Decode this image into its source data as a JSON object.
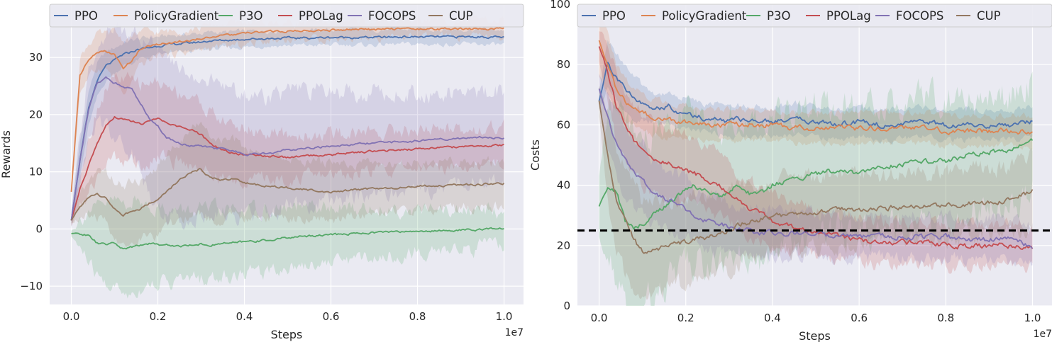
{
  "chart_data": [
    {
      "type": "line",
      "xlabel": "Steps",
      "ylabel": "Rewards",
      "x_offset_label": "1e7",
      "x_ticks": [
        "0.0",
        "0.2",
        "0.4",
        "0.6",
        "0.8",
        "1.0"
      ],
      "y_ticks": [
        "−10",
        "0",
        "10",
        "20",
        "30"
      ],
      "xlim": [
        -0.05,
        1.045
      ],
      "ylim": [
        -13.2,
        39.3
      ],
      "grid": true,
      "legend_position": "top",
      "x": [
        0,
        0.02,
        0.04,
        0.06,
        0.08,
        0.1,
        0.12,
        0.14,
        0.16,
        0.18,
        0.2,
        0.22,
        0.25,
        0.28,
        0.3,
        0.32,
        0.35,
        0.38,
        0.4,
        0.45,
        0.5,
        0.55,
        0.6,
        0.65,
        0.7,
        0.75,
        0.8,
        0.85,
        0.9,
        0.95,
        1.0
      ],
      "series": [
        {
          "name": "PPO",
          "color": "#4c72b0",
          "values": [
            1.5,
            12,
            21,
            26,
            28.5,
            29.5,
            30.5,
            31,
            31.5,
            31.7,
            32,
            32.2,
            32.4,
            32.6,
            32.7,
            32.9,
            33,
            33.1,
            33.2,
            33.3,
            33.4,
            33.4,
            33.5,
            33.5,
            33.5,
            33.6,
            33.6,
            33.6,
            33.6,
            33.6,
            33.5
          ],
          "band": [
            1.5,
            3,
            3,
            3,
            2.5,
            2.2,
            2,
            2,
            1.8,
            1.8,
            1.6,
            1.6,
            1.5,
            1.5,
            1.5,
            1.5,
            1.4,
            1.4,
            1.4,
            1.3,
            1.3,
            1.3,
            1.3,
            1.3,
            1.3,
            1.3,
            1.3,
            1.3,
            1.3,
            1.3,
            1.3
          ]
        },
        {
          "name": "PolicyGradient",
          "color": "#dd8452",
          "values": [
            6.5,
            27,
            29.5,
            31,
            31,
            30.5,
            28,
            29.5,
            31.5,
            32,
            32.3,
            32.5,
            32.8,
            33,
            33.3,
            33.6,
            33.8,
            34,
            34.2,
            34.5,
            34.6,
            34.7,
            34.8,
            34.9,
            34.9,
            35,
            35,
            35,
            35,
            35,
            35
          ],
          "band": [
            1,
            3,
            3,
            3,
            3,
            4,
            5,
            4,
            3,
            2.5,
            2,
            2,
            2,
            2,
            2,
            2,
            2,
            2,
            2,
            1.5,
            1.5,
            1.5,
            1.5,
            1.5,
            1.5,
            1.5,
            1.5,
            1.5,
            1.5,
            1.5,
            1.5
          ]
        },
        {
          "name": "P3O",
          "color": "#55a868",
          "values": [
            -0.8,
            -0.8,
            -1.2,
            -2.5,
            -2.7,
            -2.5,
            -3.5,
            -3.2,
            -2.8,
            -2.5,
            -2.7,
            -2.8,
            -3,
            -2.8,
            -2.6,
            -2.9,
            -2.5,
            -2.4,
            -2.2,
            -2,
            -1.5,
            -1.2,
            -1,
            -0.8,
            -0.6,
            -0.5,
            -0.4,
            -0.3,
            -0.2,
            -0.1,
            0.1
          ],
          "band": [
            0.5,
            2.5,
            4.5,
            6,
            7,
            7.5,
            8,
            8,
            7.5,
            7,
            6.5,
            6.5,
            6,
            6,
            6,
            6,
            5.8,
            5.6,
            5.5,
            5.3,
            5,
            4.8,
            4.6,
            4.4,
            4.2,
            4,
            3.8,
            3.6,
            3.4,
            3.2,
            3.2
          ]
        },
        {
          "name": "PPOLag",
          "color": "#c44e52",
          "values": [
            1.5,
            7,
            11,
            15,
            18,
            19.5,
            19.2,
            18.8,
            18.3,
            18.8,
            19.3,
            18.5,
            17.8,
            17.2,
            16.5,
            15,
            13.8,
            13.2,
            13,
            12.8,
            12.5,
            12.8,
            13,
            13.3,
            13.6,
            13.8,
            14,
            14.2,
            14.4,
            14.5,
            14.7
          ],
          "band": [
            1,
            3,
            5,
            6,
            6.5,
            7,
            7,
            7,
            7,
            7,
            6.5,
            6.5,
            6,
            6,
            5.5,
            5.5,
            5,
            5,
            4.5,
            4,
            3.8,
            3.6,
            3.5,
            3.5,
            3.4,
            3.4,
            3.3,
            3.3,
            3.3,
            3.2,
            3.2
          ]
        },
        {
          "name": "FOCOPS",
          "color": "#8172b3",
          "values": [
            1.5,
            12,
            21,
            25.5,
            26.5,
            25.5,
            25,
            24.5,
            22,
            19.5,
            18,
            16,
            15,
            14.5,
            14.5,
            14.2,
            14,
            13.5,
            13,
            13.2,
            13.8,
            14.2,
            14.5,
            14.8,
            15,
            15.2,
            15.4,
            15.6,
            15.8,
            16,
            16
          ],
          "band": [
            1,
            4,
            6,
            7,
            8,
            9,
            10,
            11,
            12,
            13,
            13.5,
            13.5,
            13,
            12.5,
            12,
            11.5,
            11,
            10.8,
            10.5,
            10.2,
            10,
            9.8,
            9.5,
            9.2,
            9,
            8.8,
            8.5,
            8.2,
            8,
            8,
            8
          ]
        },
        {
          "name": "CUP",
          "color": "#937860",
          "values": [
            1.5,
            4,
            5.5,
            6,
            5.5,
            3.5,
            2.5,
            3,
            3.5,
            4.5,
            5,
            6.5,
            8.5,
            10,
            10.5,
            9,
            8.5,
            8.8,
            8,
            7.5,
            7.2,
            6.8,
            6.5,
            6.8,
            7,
            7.2,
            7.5,
            7.6,
            7.7,
            7.8,
            8
          ],
          "band": [
            0.5,
            2,
            3,
            4,
            4.5,
            5,
            5,
            5,
            5,
            5.5,
            6,
            6.5,
            7,
            7.5,
            7.5,
            7.5,
            7,
            6.5,
            6,
            5.5,
            5.2,
            5,
            4.8,
            4.6,
            4.4,
            4.2,
            4.1,
            4,
            4,
            4,
            4
          ]
        }
      ]
    },
    {
      "type": "line",
      "xlabel": "Steps",
      "ylabel": "Costs",
      "x_offset_label": "1e7",
      "x_ticks": [
        "0.0",
        "0.2",
        "0.4",
        "0.6",
        "0.8",
        "1.0"
      ],
      "y_ticks": [
        "0",
        "20",
        "40",
        "60",
        "80",
        "100"
      ],
      "xlim": [
        -0.05,
        1.045
      ],
      "ylim": [
        0,
        100
      ],
      "grid": true,
      "legend_position": "top",
      "threshold": 25,
      "x": [
        0,
        0.02,
        0.04,
        0.06,
        0.08,
        0.1,
        0.12,
        0.14,
        0.16,
        0.18,
        0.2,
        0.22,
        0.25,
        0.28,
        0.3,
        0.32,
        0.35,
        0.38,
        0.4,
        0.45,
        0.5,
        0.55,
        0.6,
        0.65,
        0.7,
        0.75,
        0.8,
        0.85,
        0.9,
        0.95,
        1.0
      ],
      "series": [
        {
          "name": "PPO",
          "color": "#4c72b0",
          "values": [
            68,
            80,
            76,
            72,
            69,
            67,
            66,
            65,
            66,
            64,
            64,
            63,
            62,
            62,
            61,
            62,
            61,
            61,
            61,
            62,
            61,
            60,
            61,
            60,
            60,
            61,
            60,
            60,
            60,
            60,
            61
          ],
          "band": [
            3,
            8,
            8,
            8,
            7,
            6,
            5,
            5,
            5,
            5,
            5,
            5,
            5,
            5,
            5,
            5,
            5,
            5,
            5,
            5,
            5,
            5,
            5,
            5,
            5,
            5,
            5,
            5,
            5,
            5,
            5
          ]
        },
        {
          "name": "PolicyGradient",
          "color": "#dd8452",
          "values": [
            88,
            80,
            72,
            68,
            66,
            64,
            63,
            62,
            62,
            61,
            61,
            60,
            60,
            60,
            60,
            60,
            60,
            60,
            60,
            59,
            59,
            59,
            59,
            59,
            59,
            59,
            58,
            58,
            58,
            58,
            58
          ],
          "band": [
            12,
            10,
            8,
            7,
            6,
            6,
            6,
            6,
            6,
            6,
            5,
            5,
            5,
            5,
            5,
            5,
            5,
            5,
            5,
            5,
            5,
            5,
            5,
            5,
            5,
            5,
            5,
            5,
            5,
            5,
            5
          ]
        },
        {
          "name": "P3O",
          "color": "#55a868",
          "values": [
            33,
            40,
            38,
            28,
            26,
            27,
            30,
            32,
            34,
            36,
            38,
            40,
            38,
            36,
            38,
            40,
            37,
            38,
            40,
            42,
            44,
            45,
            44,
            46,
            47,
            48,
            48,
            50,
            51,
            52,
            55
          ],
          "band": [
            10,
            25,
            30,
            30,
            30,
            30,
            28,
            28,
            26,
            26,
            25,
            25,
            24,
            24,
            24,
            24,
            24,
            24,
            22,
            22,
            22,
            20,
            20,
            20,
            20,
            20,
            20,
            18,
            18,
            18,
            18
          ]
        },
        {
          "name": "PPOLag",
          "color": "#c44e52",
          "values": [
            86,
            78,
            66,
            60,
            55,
            52,
            50,
            48,
            47,
            46,
            45,
            44,
            42,
            40,
            37,
            35,
            32,
            30,
            28,
            26,
            24,
            23,
            22,
            21,
            21,
            21,
            20,
            20,
            20,
            20,
            19
          ],
          "band": [
            5,
            10,
            12,
            12,
            12,
            12,
            12,
            12,
            11,
            11,
            11,
            10,
            10,
            10,
            10,
            9,
            9,
            9,
            9,
            8,
            8,
            8,
            7,
            7,
            7,
            7,
            7,
            7,
            7,
            7,
            7
          ]
        },
        {
          "name": "FOCOPS",
          "color": "#8172b3",
          "values": [
            72,
            62,
            54,
            48,
            44,
            42,
            38,
            36,
            35,
            34,
            32,
            30,
            28,
            27,
            26,
            25,
            25,
            24,
            24,
            24,
            24,
            23,
            23,
            23,
            23,
            23,
            23,
            22,
            22,
            22,
            20
          ],
          "band": [
            5,
            10,
            12,
            12,
            12,
            12,
            11,
            11,
            10,
            10,
            10,
            9,
            9,
            9,
            8,
            8,
            8,
            8,
            8,
            7,
            7,
            7,
            7,
            7,
            7,
            7,
            7,
            7,
            7,
            7,
            7
          ]
        },
        {
          "name": "CUP",
          "color": "#937860",
          "values": [
            68,
            50,
            35,
            28,
            22,
            18,
            18,
            19,
            20,
            21,
            21,
            22,
            23,
            24,
            25,
            27,
            28,
            29,
            30,
            30,
            31,
            32,
            32,
            32,
            33,
            33,
            33,
            34,
            34,
            35,
            38
          ],
          "band": [
            5,
            15,
            18,
            18,
            17,
            16,
            15,
            15,
            14,
            14,
            14,
            14,
            13,
            13,
            13,
            13,
            12,
            12,
            12,
            12,
            12,
            12,
            11,
            11,
            11,
            11,
            11,
            11,
            11,
            11,
            11
          ]
        }
      ]
    }
  ]
}
